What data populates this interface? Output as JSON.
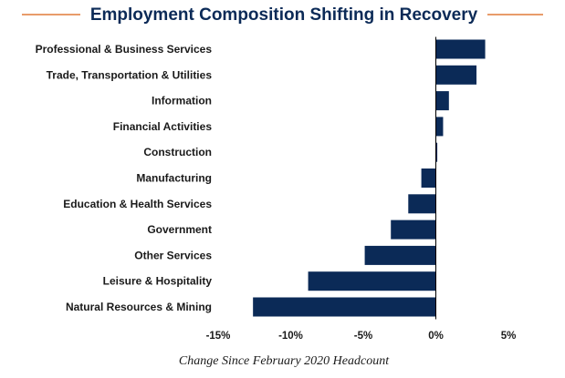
{
  "chart_data": {
    "type": "bar",
    "orientation": "horizontal",
    "title": "Employment Composition Shifting in Recovery",
    "xlabel": "Change Since February 2020 Headcount",
    "ylabel": "",
    "categories": [
      "Professional & Business Services",
      "Trade, Transportation & Utilities",
      "Information",
      "Financial Activities",
      "Construction",
      "Manufacturing",
      "Education & Health Services",
      "Government",
      "Other Services",
      "Leisure & Hospitality",
      "Natural Resources & Mining"
    ],
    "values": [
      3.4,
      2.8,
      0.9,
      0.5,
      0.1,
      -1.0,
      -1.9,
      -3.1,
      -4.9,
      -8.8,
      -12.6
    ],
    "xlim": [
      -15,
      5
    ],
    "xticks": [
      -15,
      -10,
      -5,
      0,
      5
    ],
    "xtick_labels": [
      "-15%",
      "-10%",
      "-5%",
      "0%",
      "5%"
    ],
    "grid": false,
    "legend": "none",
    "colors": {
      "bar": "#0b2a57",
      "title": "#0b2a57",
      "title_rule": "#e07b39",
      "axis": "#000000"
    }
  }
}
